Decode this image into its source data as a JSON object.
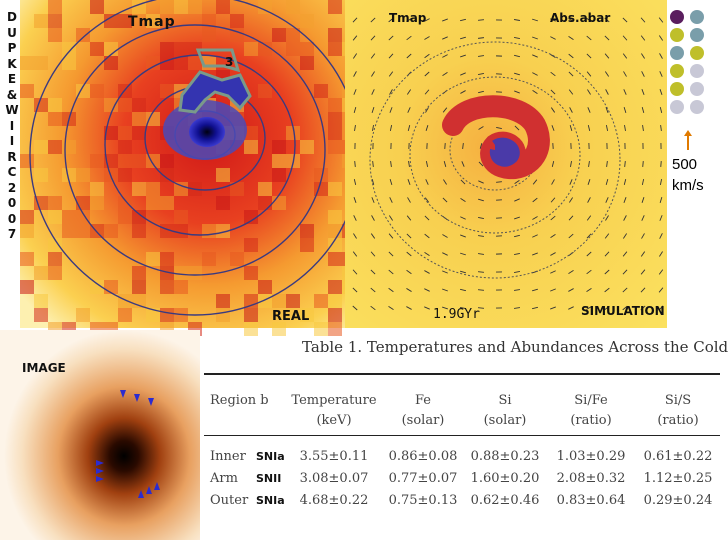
{
  "side_label": [
    "D",
    "U",
    "P",
    "K",
    "E",
    "&",
    "W",
    "I",
    "I",
    "R",
    "C",
    "2",
    "0",
    "0",
    "7"
  ],
  "labels": {
    "tmap_real": "Tmap",
    "tmap_sim": "Tmap",
    "abs_tbar": "Abs.abar",
    "real": "REAL",
    "simulation": "SIMULATION",
    "image": "IMAGE",
    "region_number": "3",
    "time": "1.9GYr",
    "scale_value": "500",
    "scale_unit": "km/s"
  },
  "palette": [
    "#5a1e5e",
    "#7a9eaa",
    "#bfbf2a",
    "#c8c8d6"
  ],
  "table": {
    "caption": "Table 1.   Temperatures and Abundances Across the Cold",
    "headers": [
      {
        "top": "Region b",
        "bottom": ""
      },
      {
        "top": "Temperature",
        "bottom": "(keV)"
      },
      {
        "top": "Fe",
        "bottom": "(solar)"
      },
      {
        "top": "Si",
        "bottom": "(solar)"
      },
      {
        "top": "Si/Fe",
        "bottom": "(ratio)"
      },
      {
        "top": "Si/S",
        "bottom": "(ratio)"
      }
    ],
    "rows": [
      {
        "region": "Inner",
        "note": "SNIa",
        "temp": "3.55±0.11",
        "fe": "0.86±0.08",
        "si": "0.88±0.23",
        "sife": "1.03±0.29",
        "sis": "0.61±0.22"
      },
      {
        "region": "Arm",
        "note": "SNII",
        "temp": "3.08±0.07",
        "fe": "0.77±0.07",
        "si": "1.60±0.20",
        "sife": "2.08±0.32",
        "sis": "1.12±0.25"
      },
      {
        "region": "Outer",
        "note": "SNIa",
        "temp": "4.68±0.22",
        "fe": "0.75±0.13",
        "si": "0.62±0.46",
        "sife": "0.83±0.64",
        "sis": "0.29±0.24"
      }
    ]
  }
}
